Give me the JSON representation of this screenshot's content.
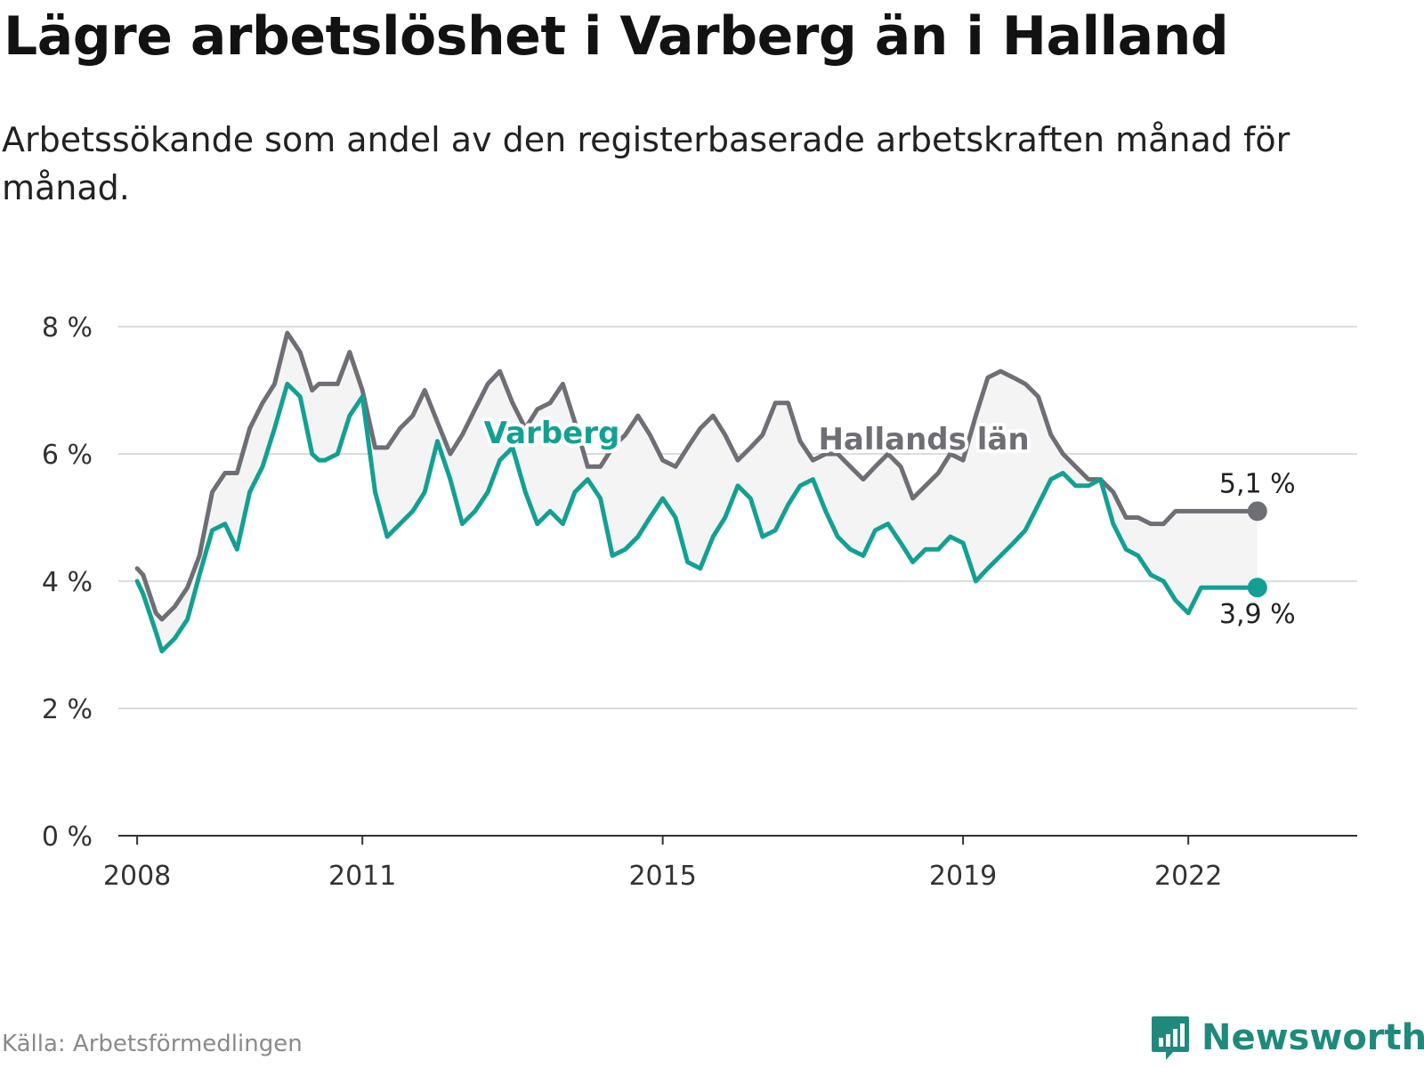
{
  "title": "Lägre arbetslöshet i Varberg än i Halland",
  "subtitle": "Arbetssökande som andel av den registerbaserade arbetskraften månad för månad.",
  "source": "Källa: Arbetsförmedlingen",
  "brand": {
    "name": "Newsworthy",
    "icon": "newsworthy-logo-icon"
  },
  "colors": {
    "varberg": "#13a093",
    "halland": "#6e6e75",
    "band": "#f1f1f1",
    "grid": "#dcdcdc",
    "axis": "#333333"
  },
  "chart_data": {
    "type": "line",
    "title": "Lägre arbetslöshet i Varberg än i Halland",
    "xlabel": "",
    "ylabel": "",
    "ylim": [
      0,
      8
    ],
    "xlim": [
      2007.75,
      2024.25
    ],
    "y_ticks": [
      0,
      2,
      4,
      6,
      8
    ],
    "y_tick_labels": [
      "0 %",
      "2 %",
      "4 %",
      "6 %",
      "8 %"
    ],
    "x_ticks": [
      2008,
      2011,
      2015,
      2019,
      2022
    ],
    "x_tick_labels": [
      "2008",
      "2011",
      "2015",
      "2019",
      "2022"
    ],
    "grid": true,
    "series": [
      {
        "name": "Hallands län",
        "label": "Hallands län",
        "end_label": "5,1 %",
        "x": [
          2008.0,
          2008.08,
          2008.25,
          2008.33,
          2008.5,
          2008.67,
          2008.83,
          2009.0,
          2009.17,
          2009.33,
          2009.5,
          2009.67,
          2009.83,
          2010.0,
          2010.17,
          2010.33,
          2010.42,
          2010.5,
          2010.67,
          2010.83,
          2011.0,
          2011.17,
          2011.33,
          2011.5,
          2011.67,
          2011.83,
          2012.0,
          2012.17,
          2012.33,
          2012.5,
          2012.67,
          2012.83,
          2013.0,
          2013.17,
          2013.33,
          2013.5,
          2013.67,
          2013.83,
          2014.0,
          2014.17,
          2014.33,
          2014.5,
          2014.67,
          2014.83,
          2015.0,
          2015.17,
          2015.33,
          2015.5,
          2015.67,
          2015.83,
          2016.0,
          2016.17,
          2016.33,
          2016.5,
          2016.67,
          2016.83,
          2017.0,
          2017.17,
          2017.33,
          2017.5,
          2017.67,
          2017.83,
          2018.0,
          2018.17,
          2018.33,
          2018.5,
          2018.67,
          2018.83,
          2019.0,
          2019.17,
          2019.33,
          2019.5,
          2019.67,
          2019.83,
          2020.0,
          2020.17,
          2020.33,
          2020.5,
          2020.67,
          2020.83,
          2021.0,
          2021.17,
          2021.33,
          2021.5,
          2021.67,
          2021.83,
          2022.0,
          2022.17,
          2022.33,
          2022.5,
          2022.67,
          2022.83,
          2022.92
        ],
        "values": [
          4.2,
          4.1,
          3.5,
          3.4,
          3.6,
          3.9,
          4.4,
          5.4,
          5.7,
          5.7,
          6.4,
          6.8,
          7.1,
          7.9,
          7.6,
          7.0,
          7.1,
          7.1,
          7.1,
          7.6,
          7.0,
          6.1,
          6.1,
          6.4,
          6.6,
          7.0,
          6.5,
          6.0,
          6.3,
          6.7,
          7.1,
          7.3,
          6.8,
          6.4,
          6.7,
          6.8,
          7.1,
          6.5,
          5.8,
          5.8,
          6.1,
          6.3,
          6.6,
          6.3,
          5.9,
          5.8,
          6.1,
          6.4,
          6.6,
          6.3,
          5.9,
          6.1,
          6.3,
          6.8,
          6.8,
          6.2,
          5.9,
          6.0,
          6.0,
          5.8,
          5.6,
          5.8,
          6.0,
          5.8,
          5.3,
          5.5,
          5.7,
          6.0,
          5.9,
          6.6,
          7.2,
          7.3,
          7.2,
          7.1,
          6.9,
          6.3,
          6.0,
          5.8,
          5.6,
          5.6,
          5.4,
          5.0,
          5.0,
          4.9,
          4.9,
          5.1,
          5.1,
          5.1,
          5.1,
          5.1,
          5.1,
          5.1,
          5.1
        ]
      },
      {
        "name": "Varberg",
        "label": "Varberg",
        "end_label": "3,9 %",
        "x": [
          2008.0,
          2008.08,
          2008.25,
          2008.33,
          2008.5,
          2008.67,
          2008.83,
          2009.0,
          2009.17,
          2009.33,
          2009.5,
          2009.67,
          2009.83,
          2010.0,
          2010.17,
          2010.33,
          2010.42,
          2010.5,
          2010.67,
          2010.83,
          2011.0,
          2011.17,
          2011.33,
          2011.5,
          2011.67,
          2011.83,
          2012.0,
          2012.17,
          2012.33,
          2012.5,
          2012.67,
          2012.83,
          2013.0,
          2013.17,
          2013.33,
          2013.5,
          2013.67,
          2013.83,
          2014.0,
          2014.17,
          2014.33,
          2014.5,
          2014.67,
          2014.83,
          2015.0,
          2015.17,
          2015.33,
          2015.5,
          2015.67,
          2015.83,
          2016.0,
          2016.17,
          2016.33,
          2016.5,
          2016.67,
          2016.83,
          2017.0,
          2017.17,
          2017.33,
          2017.5,
          2017.67,
          2017.83,
          2018.0,
          2018.17,
          2018.33,
          2018.5,
          2018.67,
          2018.83,
          2019.0,
          2019.17,
          2019.33,
          2019.5,
          2019.67,
          2019.83,
          2020.0,
          2020.17,
          2020.33,
          2020.5,
          2020.67,
          2020.83,
          2021.0,
          2021.17,
          2021.33,
          2021.5,
          2021.67,
          2021.83,
          2022.0,
          2022.17,
          2022.33,
          2022.5,
          2022.67,
          2022.83,
          2022.92
        ],
        "values": [
          4.0,
          3.8,
          3.2,
          2.9,
          3.1,
          3.4,
          4.1,
          4.8,
          4.9,
          4.5,
          5.4,
          5.8,
          6.4,
          7.1,
          6.9,
          6.0,
          5.9,
          5.9,
          6.0,
          6.6,
          6.9,
          5.4,
          4.7,
          4.9,
          5.1,
          5.4,
          6.2,
          5.6,
          4.9,
          5.1,
          5.4,
          5.9,
          6.1,
          5.4,
          4.9,
          5.1,
          4.9,
          5.4,
          5.6,
          5.3,
          4.4,
          4.5,
          4.7,
          5.0,
          5.3,
          5.0,
          4.3,
          4.2,
          4.7,
          5.0,
          5.5,
          5.3,
          4.7,
          4.8,
          5.2,
          5.5,
          5.6,
          5.1,
          4.7,
          4.5,
          4.4,
          4.8,
          4.9,
          4.6,
          4.3,
          4.5,
          4.5,
          4.7,
          4.6,
          4.0,
          4.2,
          4.4,
          4.6,
          4.8,
          5.2,
          5.6,
          5.7,
          5.5,
          5.5,
          5.6,
          4.9,
          4.5,
          4.4,
          4.1,
          4.0,
          3.7,
          3.5,
          3.9,
          3.9,
          3.9,
          3.9,
          3.9,
          3.9
        ]
      }
    ]
  }
}
